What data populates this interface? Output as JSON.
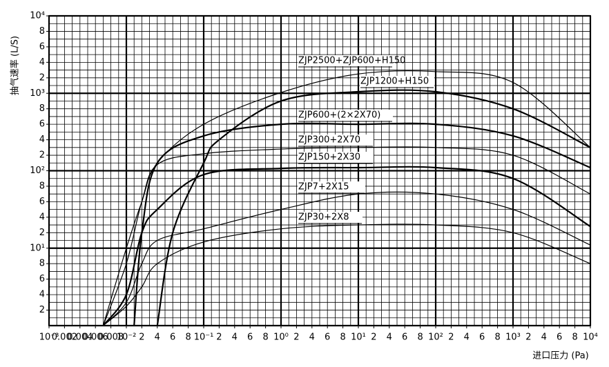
{
  "chart_data": {
    "type": "line",
    "x_label": "进口压力 (Pa)",
    "y_label": "抽气速率 (L/S)",
    "scale": "decade",
    "grid": true,
    "xlim": [
      0.001,
      10000
    ],
    "ylim": [
      1,
      10000
    ],
    "xticks": [
      {
        "value": 0.001,
        "label": "10⁻³"
      },
      0.002,
      0.004,
      0.006,
      0.008,
      {
        "value": 0.01,
        "label": "10⁻²"
      },
      {
        "value": 0.02,
        "label": "2"
      },
      {
        "value": 0.04,
        "label": "4"
      },
      {
        "value": 0.06,
        "label": "6"
      },
      {
        "value": 0.08,
        "label": "8"
      },
      {
        "value": 0.1,
        "label": "10⁻¹"
      },
      {
        "value": 0.2,
        "label": "2"
      },
      {
        "value": 0.4,
        "label": "4"
      },
      {
        "value": 0.6,
        "label": "6"
      },
      {
        "value": 0.8,
        "label": "8"
      },
      {
        "value": 1,
        "label": "10⁰"
      },
      2,
      4,
      6,
      8,
      {
        "value": 10,
        "label": "10¹"
      },
      {
        "value": 20,
        "label": "2"
      },
      {
        "value": 40,
        "label": "4"
      },
      {
        "value": 60,
        "label": "6"
      },
      {
        "value": 80,
        "label": "8"
      },
      {
        "value": 100,
        "label": "10²"
      },
      {
        "value": 200,
        "label": "2"
      },
      {
        "value": 400,
        "label": "4"
      },
      {
        "value": 600,
        "label": "6"
      },
      {
        "value": 800,
        "label": "8"
      },
      {
        "value": 1000,
        "label": "10³"
      },
      {
        "value": 2000,
        "label": "2"
      },
      {
        "value": 4000,
        "label": "4"
      },
      {
        "value": 6000,
        "label": "6"
      },
      {
        "value": 8000,
        "label": "8"
      },
      {
        "value": 10000,
        "label": "10⁴"
      }
    ],
    "yticks": [
      2,
      4,
      6,
      8,
      {
        "value": 10,
        "label": "10¹"
      },
      {
        "value": 20,
        "label": "2"
      },
      {
        "value": 40,
        "label": "4"
      },
      {
        "value": 60,
        "label": "6"
      },
      {
        "value": 80,
        "label": "8"
      },
      {
        "value": 100,
        "label": "10²"
      },
      {
        "value": 200,
        "label": "2"
      },
      {
        "value": 400,
        "label": "4"
      },
      {
        "value": 600,
        "label": "6"
      },
      {
        "value": 800,
        "label": "8"
      },
      {
        "value": 1000,
        "label": "10³"
      },
      {
        "value": 2000,
        "label": "2"
      },
      {
        "value": 4000,
        "label": "4"
      },
      {
        "value": 6000,
        "label": "6"
      },
      {
        "value": 8000,
        "label": "8"
      },
      {
        "value": 10000,
        "label": "10⁴"
      }
    ],
    "series": [
      {
        "name": "ZJP2500+ZJP600+H150",
        "color": "#000000",
        "line_width": 1.2,
        "x": [
          0.007,
          0.01,
          0.02,
          0.04,
          0.1,
          1,
          10,
          100,
          1000,
          10000
        ],
        "y": [
          1,
          10,
          60,
          150,
          600,
          1050,
          2500,
          2800,
          1700,
          300
        ]
      },
      {
        "name": "ZJP1200+H150",
        "color": "#000000",
        "line_width": 2.2,
        "x": [
          0.04,
          0.06,
          0.1,
          0.2,
          1,
          10,
          100,
          1000,
          10000
        ],
        "y": [
          1,
          20,
          150,
          400,
          900,
          1100,
          1100,
          800,
          300
        ]
      },
      {
        "name": "ZJP600+(2×2X70)",
        "color": "#000000",
        "line_width": 2.2,
        "x": [
          0.015,
          0.02,
          0.04,
          0.1,
          1,
          10,
          100,
          1000,
          10000
        ],
        "y": [
          1,
          20,
          150,
          450,
          600,
          600,
          600,
          450,
          120
        ]
      },
      {
        "name": "ZJP300+2X70",
        "color": "#000000",
        "line_width": 1.2,
        "x": [
          0.007,
          0.01,
          0.02,
          0.04,
          0.1,
          1,
          10,
          100,
          1000,
          10000
        ],
        "y": [
          1,
          8,
          60,
          140,
          220,
          280,
          300,
          300,
          200,
          70
        ]
      },
      {
        "name": "ZJP150+2X30",
        "color": "#000000",
        "line_width": 2.2,
        "x": [
          0.007,
          0.01,
          0.02,
          0.04,
          0.1,
          1,
          10,
          100,
          1000,
          10000
        ],
        "y": [
          1,
          4,
          20,
          50,
          95,
          115,
          120,
          120,
          90,
          28
        ]
      },
      {
        "name": "ZJP7+2X15",
        "color": "#000000",
        "line_width": 1.2,
        "x": [
          0.007,
          0.01,
          0.02,
          0.04,
          0.1,
          1,
          10,
          100,
          1000,
          10000
        ],
        "y": [
          1,
          3,
          8,
          15,
          25,
          50,
          70,
          70,
          50,
          12
        ]
      },
      {
        "name": "ZJP30+2X8",
        "color": "#000000",
        "line_width": 1.2,
        "x": [
          0.007,
          0.01,
          0.02,
          0.04,
          0.1,
          1,
          10,
          100,
          1000,
          10000
        ],
        "y": [
          1,
          2.5,
          5,
          8,
          14,
          25,
          30,
          30,
          20,
          8
        ]
      }
    ]
  }
}
